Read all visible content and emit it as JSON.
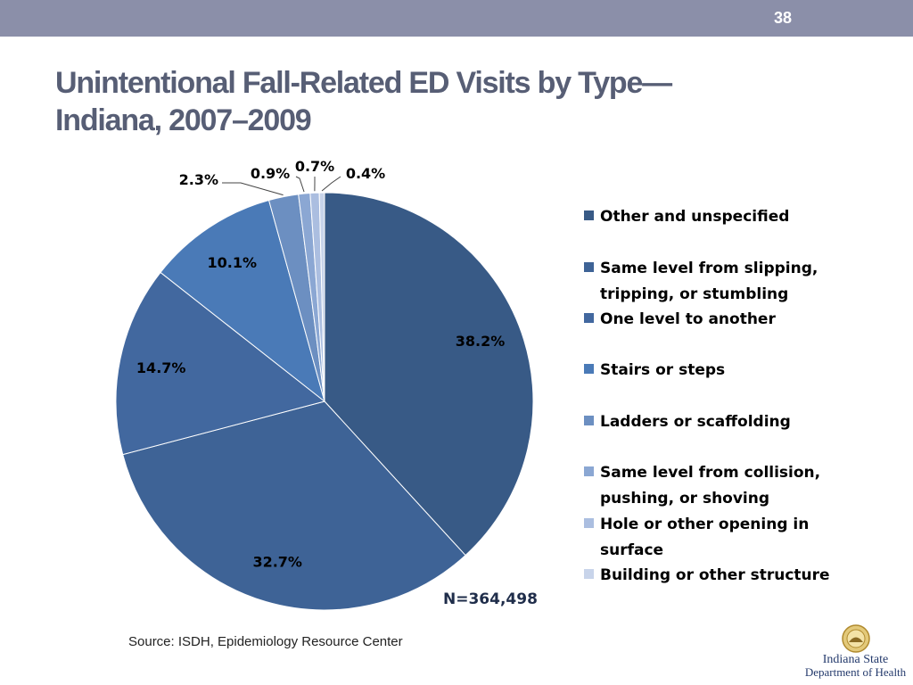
{
  "slide": {
    "number": "38"
  },
  "title": {
    "line1": "Unintentional Fall-Related ED Visits by Type—",
    "line2": "Indiana, 2007–2009"
  },
  "chart_data": {
    "type": "pie",
    "categories": [
      "Other and unspecified",
      "Same level from slipping, tripping, or stumbling",
      "One level to another",
      "Stairs or steps",
      "Ladders or scaffolding",
      "Same level from collision, pushing, or shoving",
      "Hole or other opening in surface",
      "Building or other structure"
    ],
    "values": [
      38.2,
      32.7,
      14.7,
      10.1,
      2.3,
      0.9,
      0.7,
      0.4
    ],
    "data_labels": [
      "38.2%",
      "32.7%",
      "14.7%",
      "10.1%",
      "2.3%",
      "0.9%",
      "0.7%",
      "0.4%"
    ],
    "colors": [
      "#385a86",
      "#3e6396",
      "#42689f",
      "#4a7ab7",
      "#6c8fc1",
      "#8ba7d3",
      "#abbee0",
      "#c8d4ea"
    ],
    "legend_position": "right"
  },
  "legend": {
    "items": [
      {
        "line1": "Other and unspecified"
      },
      {
        "line1": "Same level from slipping,",
        "line2": "tripping, or stumbling"
      },
      {
        "line1": "One level to another"
      },
      {
        "line1": "Stairs or steps"
      },
      {
        "line1": "Ladders or scaffolding"
      },
      {
        "line1": "Same level from collision,",
        "line2": "pushing, or shoving"
      },
      {
        "line1": "Hole or other opening in",
        "line2": "surface"
      },
      {
        "line1": "Building or other structure"
      }
    ]
  },
  "total_label": "N=364,498",
  "source": "Source: ISDH, Epidemiology Resource Center",
  "logo": {
    "line1": "Indiana State",
    "line2": "Department of Health"
  }
}
